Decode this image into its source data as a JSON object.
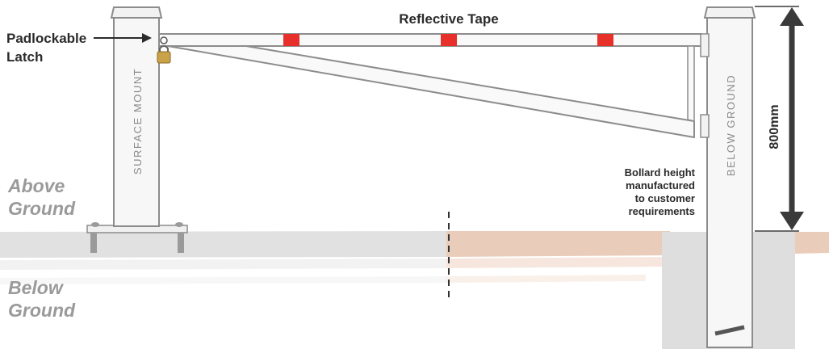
{
  "labels": {
    "reflective_tape": "Reflective Tape",
    "latch_line1": "Padlockable",
    "latch_line2": "Latch",
    "surface_mount": "SURFACE MOUNT",
    "below_ground_post": "BELOW GROUND",
    "dimension": "800mm",
    "bollard_note": [
      "Bollard height",
      "manufactured",
      "to customer",
      "requirements"
    ],
    "above_ground": [
      "Above",
      "Ground"
    ],
    "below_ground": [
      "Below",
      "Ground"
    ]
  },
  "colors": {
    "outline": "#8c8c8c",
    "post_fill": "#f7f7f7",
    "tape": "#e8302b",
    "arrow": "#3a3a3a",
    "ground_grey": "#d9d9d9",
    "ground_tan": "#e6c4b2",
    "padlock": "#c9a24a",
    "label_dark": "#2b2b2b",
    "label_grey": "#9a9a9a"
  },
  "tape_count": 3
}
